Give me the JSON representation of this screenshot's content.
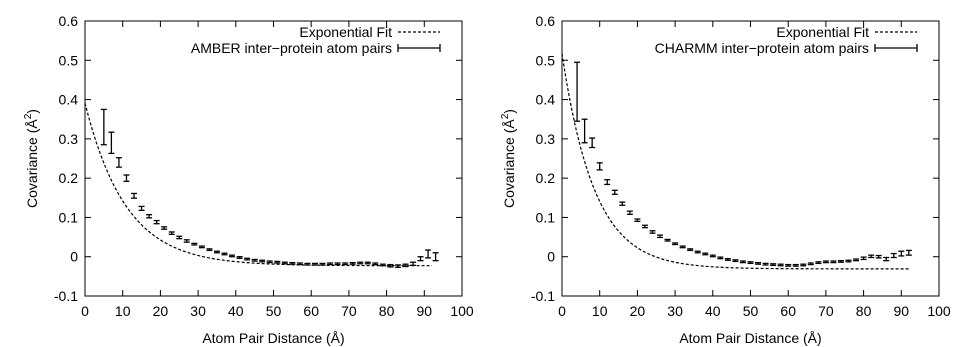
{
  "chart_data": [
    {
      "type": "scatter",
      "xlabel": "Atom Pair Distance (Å)",
      "ylabel_main": "Covariance (Å",
      "ylabel_sup": "2",
      "ylabel_close": ")",
      "xlim": [
        0,
        100
      ],
      "ylim": [
        -0.1,
        0.6
      ],
      "xticks": [
        "0",
        "10",
        "20",
        "30",
        "40",
        "50",
        "60",
        "70",
        "80",
        "90",
        "100"
      ],
      "yticks": [
        "-0.1",
        "0",
        "0.1",
        "0.2",
        "0.3",
        "0.4",
        "0.5",
        "0.6"
      ],
      "grid": false,
      "legend": "top-right",
      "fit": {
        "name": "Exponential Fit",
        "a": 0.414,
        "k": 0.092,
        "c": -0.023,
        "x_range": [
          0,
          92
        ]
      },
      "series": [
        {
          "name": "AMBER inter−protein atom pairs",
          "x": [
            5,
            7,
            9,
            11,
            13,
            15,
            17,
            19,
            21,
            23,
            25,
            27,
            29,
            31,
            33,
            35,
            37,
            39,
            41,
            43,
            45,
            47,
            49,
            51,
            53,
            55,
            57,
            59,
            61,
            63,
            65,
            67,
            69,
            71,
            73,
            75,
            77,
            79,
            81,
            83,
            85,
            87,
            89,
            91,
            93
          ],
          "y": [
            0.33,
            0.29,
            0.24,
            0.2,
            0.155,
            0.123,
            0.103,
            0.088,
            0.073,
            0.06,
            0.049,
            0.04,
            0.032,
            0.025,
            0.018,
            0.012,
            0.007,
            0.002,
            -0.002,
            -0.006,
            -0.009,
            -0.011,
            -0.013,
            -0.014,
            -0.016,
            -0.017,
            -0.018,
            -0.019,
            -0.019,
            -0.019,
            -0.018,
            -0.018,
            -0.018,
            -0.017,
            -0.016,
            -0.016,
            -0.018,
            -0.021,
            -0.023,
            -0.024,
            -0.022,
            -0.018,
            -0.005,
            0.007,
            0.0
          ],
          "error": [
            0.045,
            0.027,
            0.012,
            0.008,
            0.006,
            0.005,
            0.004,
            0.004,
            0.003,
            0.003,
            0.003,
            0.003,
            0.002,
            0.002,
            0.002,
            0.002,
            0.002,
            0.002,
            0.002,
            0.002,
            0.002,
            0.002,
            0.002,
            0.002,
            0.002,
            0.002,
            0.002,
            0.002,
            0.002,
            0.002,
            0.002,
            0.002,
            0.002,
            0.002,
            0.002,
            0.002,
            0.002,
            0.002,
            0.003,
            0.003,
            0.003,
            0.004,
            0.005,
            0.01,
            0.01
          ]
        }
      ]
    },
    {
      "type": "scatter",
      "xlabel": "Atom Pair Distance (Å)",
      "ylabel_main": "Covariance (Å",
      "ylabel_sup": "2",
      "ylabel_close": ")",
      "xlim": [
        0,
        100
      ],
      "ylim": [
        -0.1,
        0.6
      ],
      "xticks": [
        "0",
        "10",
        "20",
        "30",
        "40",
        "50",
        "60",
        "70",
        "80",
        "90",
        "100"
      ],
      "yticks": [
        "-0.1",
        "0",
        "0.1",
        "0.2",
        "0.3",
        "0.4",
        "0.5",
        "0.6"
      ],
      "grid": false,
      "legend": "top-right",
      "fit": {
        "name": "Exponential Fit",
        "a": 0.548,
        "k": 0.116,
        "c": -0.031,
        "x_range": [
          0,
          92
        ]
      },
      "series": [
        {
          "name": "CHARMM inter−protein atom pairs",
          "x": [
            4,
            6,
            8,
            10,
            12,
            14,
            16,
            18,
            20,
            22,
            24,
            26,
            28,
            30,
            32,
            34,
            36,
            38,
            40,
            42,
            44,
            46,
            48,
            50,
            52,
            54,
            56,
            58,
            60,
            62,
            64,
            66,
            68,
            70,
            72,
            74,
            76,
            78,
            80,
            82,
            84,
            86,
            88,
            90,
            92
          ],
          "y": [
            0.42,
            0.32,
            0.29,
            0.23,
            0.19,
            0.164,
            0.135,
            0.112,
            0.093,
            0.077,
            0.063,
            0.052,
            0.042,
            0.033,
            0.025,
            0.018,
            0.012,
            0.007,
            0.002,
            -0.003,
            -0.007,
            -0.01,
            -0.013,
            -0.015,
            -0.017,
            -0.019,
            -0.02,
            -0.021,
            -0.022,
            -0.022,
            -0.021,
            -0.018,
            -0.015,
            -0.013,
            -0.013,
            -0.012,
            -0.011,
            -0.008,
            -0.004,
            0.001,
            0.0,
            -0.006,
            0.003,
            0.008,
            0.01
          ],
          "error": [
            0.075,
            0.03,
            0.012,
            0.009,
            0.006,
            0.005,
            0.004,
            0.004,
            0.003,
            0.003,
            0.003,
            0.003,
            0.002,
            0.002,
            0.002,
            0.002,
            0.002,
            0.002,
            0.002,
            0.002,
            0.002,
            0.002,
            0.002,
            0.002,
            0.002,
            0.002,
            0.002,
            0.002,
            0.002,
            0.002,
            0.002,
            0.002,
            0.002,
            0.002,
            0.002,
            0.002,
            0.002,
            0.002,
            0.003,
            0.003,
            0.003,
            0.004,
            0.005,
            0.006,
            0.006
          ]
        }
      ]
    }
  ]
}
